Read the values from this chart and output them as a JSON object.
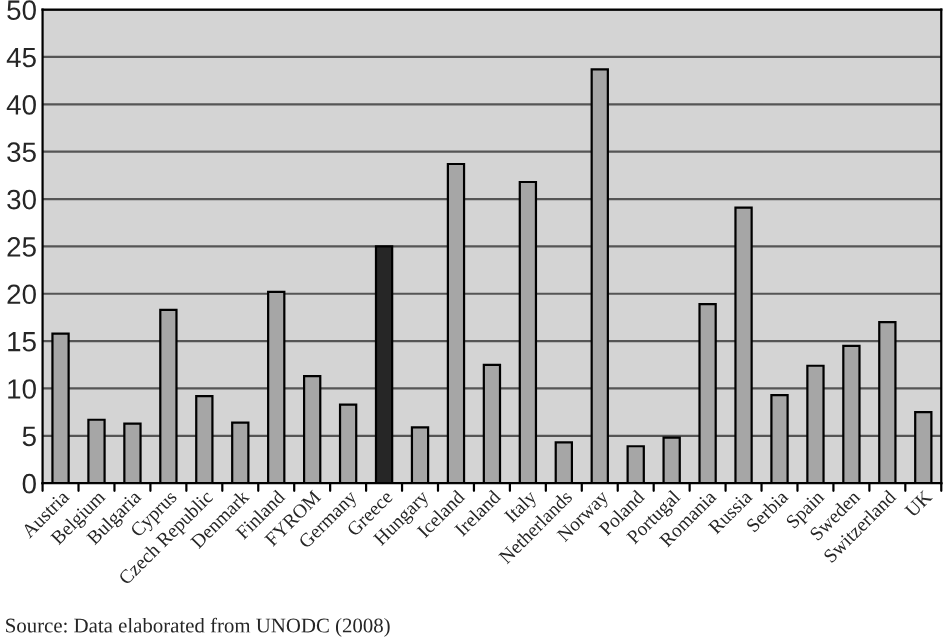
{
  "chart_data": {
    "type": "bar",
    "categories": [
      "Austria",
      "Belgium",
      "Bulgaria",
      "Cyprus",
      "Czech Republic",
      "Denmark",
      "Finland",
      "FYROM",
      "Germany",
      "Greece",
      "Hungary",
      "Iceland",
      "Ireland",
      "Italy",
      "Netherlands",
      "Norway",
      "Poland",
      "Portugal",
      "Romania",
      "Russia",
      "Serbia",
      "Spain",
      "Sweden",
      "Switzerland",
      "UK"
    ],
    "values": [
      15.8,
      6.7,
      6.3,
      18.3,
      9.2,
      6.4,
      20.2,
      11.3,
      8.3,
      25,
      5.9,
      33.7,
      12.5,
      31.8,
      4.3,
      43.7,
      3.9,
      4.8,
      18.9,
      29.1,
      9.3,
      12.4,
      14.5,
      17,
      7.5
    ],
    "colors": [
      "#a6a6a6",
      "#a6a6a6",
      "#a6a6a6",
      "#a6a6a6",
      "#a6a6a6",
      "#a6a6a6",
      "#a6a6a6",
      "#a6a6a6",
      "#a6a6a6",
      "#262626",
      "#a6a6a6",
      "#a6a6a6",
      "#a6a6a6",
      "#a6a6a6",
      "#a6a6a6",
      "#a6a6a6",
      "#a6a6a6",
      "#a6a6a6",
      "#a6a6a6",
      "#a6a6a6",
      "#a6a6a6",
      "#a6a6a6",
      "#a6a6a6",
      "#a6a6a6",
      "#a6a6a6"
    ],
    "ylim": [
      0,
      50
    ],
    "yticks": [
      0,
      5,
      10,
      15,
      20,
      25,
      30,
      35,
      40,
      45,
      50
    ],
    "grid": "y",
    "annotations": [
      "Source: Data elaborated from UNODC (2008)"
    ]
  }
}
